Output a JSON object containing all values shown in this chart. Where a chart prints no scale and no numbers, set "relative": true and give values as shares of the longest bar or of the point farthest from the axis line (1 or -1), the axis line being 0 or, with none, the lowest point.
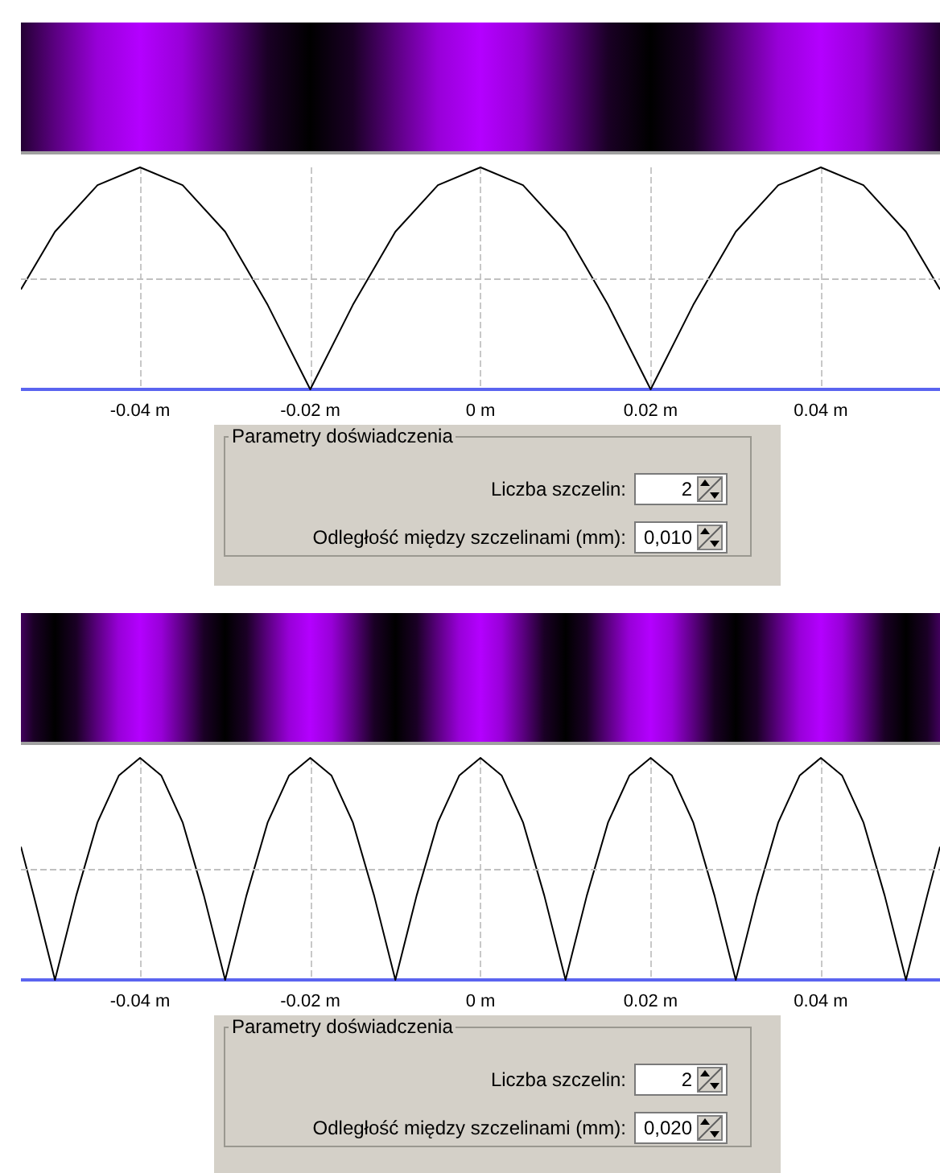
{
  "chart_data": [
    {
      "type": "line",
      "relative": true,
      "color": "#000000",
      "marker": "none",
      "line_style": "solid",
      "grid": "x",
      "x": [
        -0.054,
        -0.05,
        -0.045,
        -0.04,
        -0.035,
        -0.03,
        -0.025,
        -0.02,
        -0.015,
        -0.01,
        -0.005,
        0,
        0.005,
        0.01,
        0.015,
        0.02,
        0.025,
        0.03,
        0.035,
        0.04,
        0.045,
        0.05,
        0.054
      ],
      "values": [
        0.45,
        0.71,
        0.92,
        1,
        0.92,
        0.71,
        0.38,
        0,
        0.38,
        0.71,
        0.92,
        1,
        0.92,
        0.71,
        0.38,
        0,
        0.38,
        0.71,
        0.92,
        1,
        0.92,
        0.71,
        0.45
      ],
      "xlim": [
        -0.054,
        0.054
      ],
      "xticks": [
        {
          "value": -0.04,
          "label": "-0.04 m"
        },
        {
          "value": -0.02,
          "label": "-0.02 m"
        },
        {
          "value": 0,
          "label": "0 m"
        },
        {
          "value": 0.02,
          "label": "0.02 m"
        },
        {
          "value": 0.04,
          "label": "0.04 m"
        }
      ],
      "ref_lines": [
        {
          "axis": "y",
          "value": 0.5,
          "line_style": "dashed",
          "color": "#c0c0c0"
        }
      ],
      "annotations": [
        "Parametry doświadczenia",
        "Liczba szczelin:",
        "2",
        "Odległość między szczelinami (mm):",
        "0,010"
      ]
    },
    {
      "type": "line",
      "relative": true,
      "color": "#000000",
      "marker": "none",
      "line_style": "solid",
      "grid": "x",
      "x": [
        -0.054,
        -0.0525,
        -0.05,
        -0.0475,
        -0.045,
        -0.0425,
        -0.04,
        -0.0375,
        -0.035,
        -0.0325,
        -0.03,
        -0.0275,
        -0.025,
        -0.0225,
        -0.02,
        -0.0175,
        -0.015,
        -0.0125,
        -0.01,
        -0.0075,
        -0.005,
        -0.0025,
        0,
        0.0025,
        0.005,
        0.0075,
        0.01,
        0.0125,
        0.015,
        0.0175,
        0.02,
        0.0225,
        0.025,
        0.0275,
        0.03,
        0.0325,
        0.035,
        0.0375,
        0.04,
        0.0425,
        0.045,
        0.0475,
        0.05,
        0.0525,
        0.054
      ],
      "values": [
        0.6,
        0.38,
        0,
        0.38,
        0.71,
        0.92,
        1,
        0.92,
        0.71,
        0.38,
        0,
        0.38,
        0.71,
        0.92,
        1,
        0.92,
        0.71,
        0.38,
        0,
        0.38,
        0.71,
        0.92,
        1,
        0.92,
        0.71,
        0.38,
        0,
        0.38,
        0.71,
        0.92,
        1,
        0.92,
        0.71,
        0.38,
        0,
        0.38,
        0.71,
        0.92,
        1,
        0.92,
        0.71,
        0.38,
        0,
        0.38,
        0.6
      ],
      "xlim": [
        -0.054,
        0.054
      ],
      "xticks": [
        {
          "value": -0.04,
          "label": "-0.04 m"
        },
        {
          "value": -0.02,
          "label": "-0.02 m"
        },
        {
          "value": 0,
          "label": "0 m"
        },
        {
          "value": 0.02,
          "label": "0.02 m"
        },
        {
          "value": 0.04,
          "label": "0.04 m"
        }
      ],
      "ref_lines": [
        {
          "axis": "y",
          "value": 0.5,
          "line_style": "dashed",
          "color": "#c0c0c0"
        }
      ],
      "annotations": [
        "Parametry doświadczenia",
        "Liczba szczelin:",
        "2",
        "Odległość między szczelinami (mm):",
        "0,020"
      ]
    }
  ]
}
